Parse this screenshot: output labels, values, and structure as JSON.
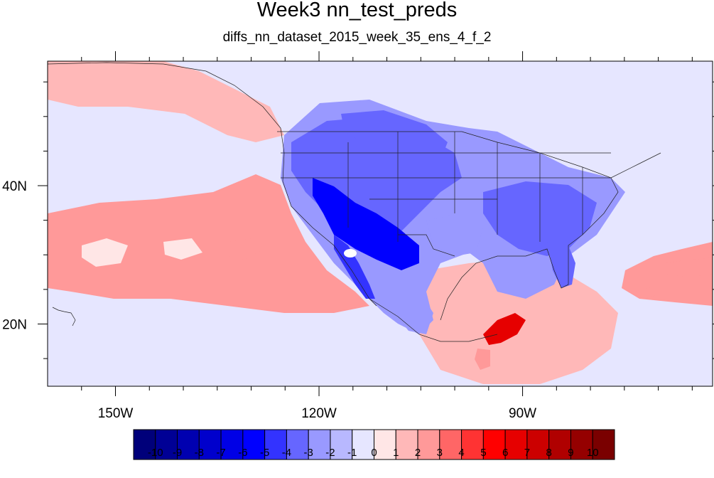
{
  "title": "Week3 nn_test_preds",
  "subtitle": "diffs_nn_dataset_2015_week_35_ens_4_f_2",
  "map": {
    "lon_range": [
      -160,
      -62
    ],
    "lat_range": [
      11,
      58
    ],
    "x_tick_labels": [
      {
        "lon": -150,
        "label": "150W"
      },
      {
        "lon": -120,
        "label": "120W"
      },
      {
        "lon": -90,
        "label": "90W"
      }
    ],
    "y_tick_labels": [
      {
        "lat": 40,
        "label": "40N"
      },
      {
        "lat": 20,
        "label": "20N"
      }
    ],
    "background_value": -1,
    "regions": [
      {
        "name": "pacific-warm-band",
        "value": 2
      },
      {
        "name": "pacific-north-warm",
        "value": 1
      },
      {
        "name": "western-us-cold",
        "value": -4
      },
      {
        "name": "southwest-core-cold",
        "value": -6
      },
      {
        "name": "northern-plains-cold",
        "value": -4
      },
      {
        "name": "southeast-us-cold",
        "value": -4
      },
      {
        "name": "texas-cold",
        "value": -3
      },
      {
        "name": "mexico-cold",
        "value": -3
      },
      {
        "name": "gulf-warm",
        "value": 1
      },
      {
        "name": "central-america-warm-anomaly",
        "value": 6
      },
      {
        "name": "atlantic-warm",
        "value": 2
      }
    ]
  },
  "colorbar": {
    "labels": [
      "-10",
      "-9",
      "-8",
      "-7",
      "-6",
      "-5",
      "-4",
      "-3",
      "-2",
      "-1",
      "0",
      "1",
      "2",
      "3",
      "4",
      "5",
      "6",
      "7",
      "8",
      "9",
      "10"
    ],
    "colors": [
      "#00007a",
      "#000095",
      "#0000b0",
      "#0000cc",
      "#0000e6",
      "#0000ff",
      "#3333ff",
      "#6666ff",
      "#9999ff",
      "#b8b8ff",
      "#e6e6ff",
      "#ffe6e6",
      "#ffb8b8",
      "#ff9999",
      "#ff6666",
      "#ff3333",
      "#ff0000",
      "#e60000",
      "#cc0000",
      "#b00000",
      "#950000",
      "#7a0000"
    ]
  }
}
